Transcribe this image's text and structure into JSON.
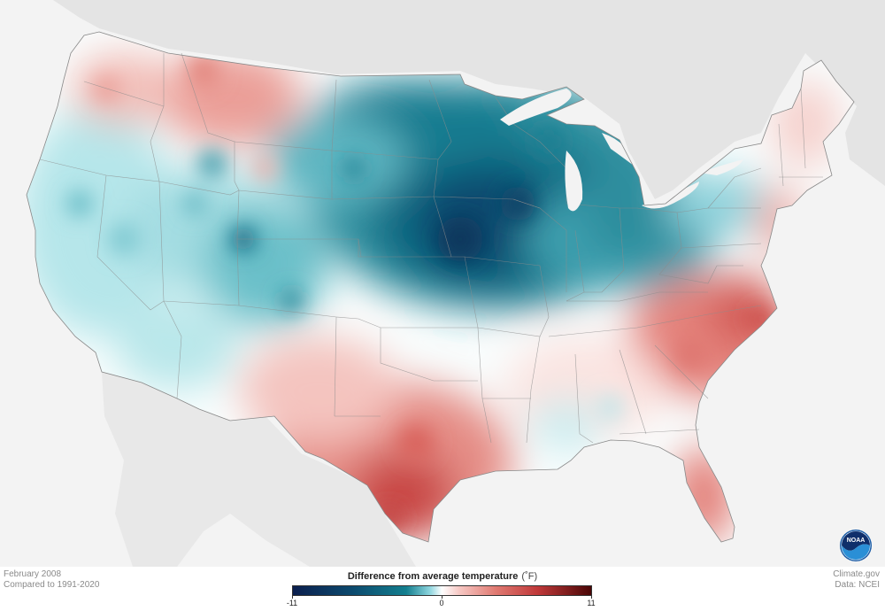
{
  "caption_left": {
    "line1": "February 2008",
    "line2": "Compared to 1991-2020"
  },
  "caption_right": {
    "line1": "Climate.gov",
    "line2": "Data: NCEI"
  },
  "legend": {
    "title": "Difference from average temperature",
    "unit": "(˚F)",
    "min_label": "-11",
    "mid_label": "0",
    "max_label": "11",
    "range": [
      -11,
      11
    ],
    "colors": {
      "cold_extreme": "#0b1f4e",
      "cold": "#137f8f",
      "neutral": "#ffffff",
      "warm": "#e07a72",
      "warm_extreme": "#4a0606"
    }
  },
  "logo": {
    "icon": "noaa-logo-icon",
    "text": "NOAA"
  },
  "map": {
    "region": "Contiguous United States",
    "background_color": "#f3f3f3",
    "land_outside_color": "#e4e4e4",
    "anomaly_summary": {
      "coldest": "Upper Midwest (MN, IA, WI)",
      "warmest": "South Texas, Carolinas, Florida"
    }
  }
}
